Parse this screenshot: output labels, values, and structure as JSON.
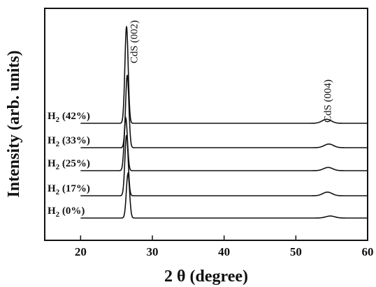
{
  "chart_data": {
    "type": "line",
    "title": "",
    "xlabel": "2 θ (degree)",
    "ylabel": "Intensity (arb. units)",
    "xlim": [
      15,
      60
    ],
    "xticks": [
      20,
      30,
      40,
      50,
      60
    ],
    "xtick_labels": [
      "20",
      "30",
      "40",
      "50",
      "60"
    ],
    "y_scale": "arbitrary (stacked, offset traces)",
    "grid": false,
    "legend": "none (series labels at left of each trace)",
    "series": [
      {
        "name": "H₂ (0%)",
        "label_main": "H",
        "label_sub": "2",
        "label_rest": " (0%)",
        "peak_x": 26.6,
        "peak_height": 0.22,
        "secondary_x": 54.8,
        "secondary_height": 0.01,
        "stroke": "#111111"
      },
      {
        "name": "H₂ (17%)",
        "label_main": "H",
        "label_sub": "2",
        "label_rest": " (17%)",
        "peak_x": 26.4,
        "peak_height": 0.3,
        "secondary_x": 54.4,
        "secondary_height": 0.018,
        "stroke": "#111111"
      },
      {
        "name": "H₂ (25%)",
        "label_main": "H",
        "label_sub": "2",
        "label_rest": " (25%)",
        "peak_x": 26.3,
        "peak_height": 0.26,
        "secondary_x": 54.5,
        "secondary_height": 0.016,
        "stroke": "#111111"
      },
      {
        "name": "H₂ (33%)",
        "label_main": "H",
        "label_sub": "2",
        "label_rest": " (33%)",
        "peak_x": 26.5,
        "peak_height": 0.36,
        "secondary_x": 54.6,
        "secondary_height": 0.018,
        "stroke": "#111111"
      },
      {
        "name": "H₂ (42%)",
        "label_main": "H",
        "label_sub": "2",
        "label_rest": " (42%)",
        "peak_x": 26.4,
        "peak_height": 0.48,
        "secondary_x": 54.3,
        "secondary_height": 0.02,
        "stroke": "#111111"
      }
    ],
    "annotations": [
      {
        "text": "CdS (002)",
        "x": 27.5,
        "rotation": -90
      },
      {
        "text": "CdS (004)",
        "x": 54.5,
        "rotation": -90
      }
    ]
  }
}
